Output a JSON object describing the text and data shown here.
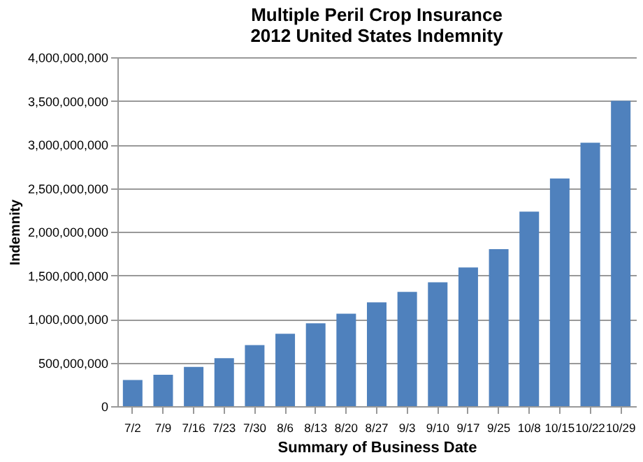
{
  "chart_data": {
    "type": "bar",
    "title": [
      "Multiple Peril Crop Insurance",
      "2012 United States Indemnity"
    ],
    "xlabel": "Summary of Business Date",
    "ylabel": "Indemnity",
    "categories": [
      "7/2",
      "7/9",
      "7/16",
      "7/23",
      "7/30",
      "8/6",
      "8/13",
      "8/20",
      "8/27",
      "9/3",
      "9/10",
      "9/17",
      "9/25",
      "10/8",
      "10/15",
      "10/22",
      "10/29"
    ],
    "values": [
      300000000,
      360000000,
      450000000,
      550000000,
      700000000,
      830000000,
      950000000,
      1060000000,
      1190000000,
      1310000000,
      1420000000,
      1590000000,
      1800000000,
      2230000000,
      2610000000,
      3020000000,
      3500000000
    ],
    "color": "#4f81bd",
    "ylim": [
      0,
      4000000000
    ],
    "yticks": [
      {
        "value": 0,
        "label": "0"
      },
      {
        "value": 500000000,
        "label": "500,000,000"
      },
      {
        "value": 1000000000,
        "label": "1,000,000,000"
      },
      {
        "value": 1500000000,
        "label": "1,500,000,000"
      },
      {
        "value": 2000000000,
        "label": "2,000,000,000"
      },
      {
        "value": 2500000000,
        "label": "2,500,000,000"
      },
      {
        "value": 3000000000,
        "label": "3,000,000,000"
      },
      {
        "value": 3500000000,
        "label": "3,500,000,000"
      },
      {
        "value": 4000000000,
        "label": "4,000,000,000"
      }
    ],
    "grid": "y"
  }
}
